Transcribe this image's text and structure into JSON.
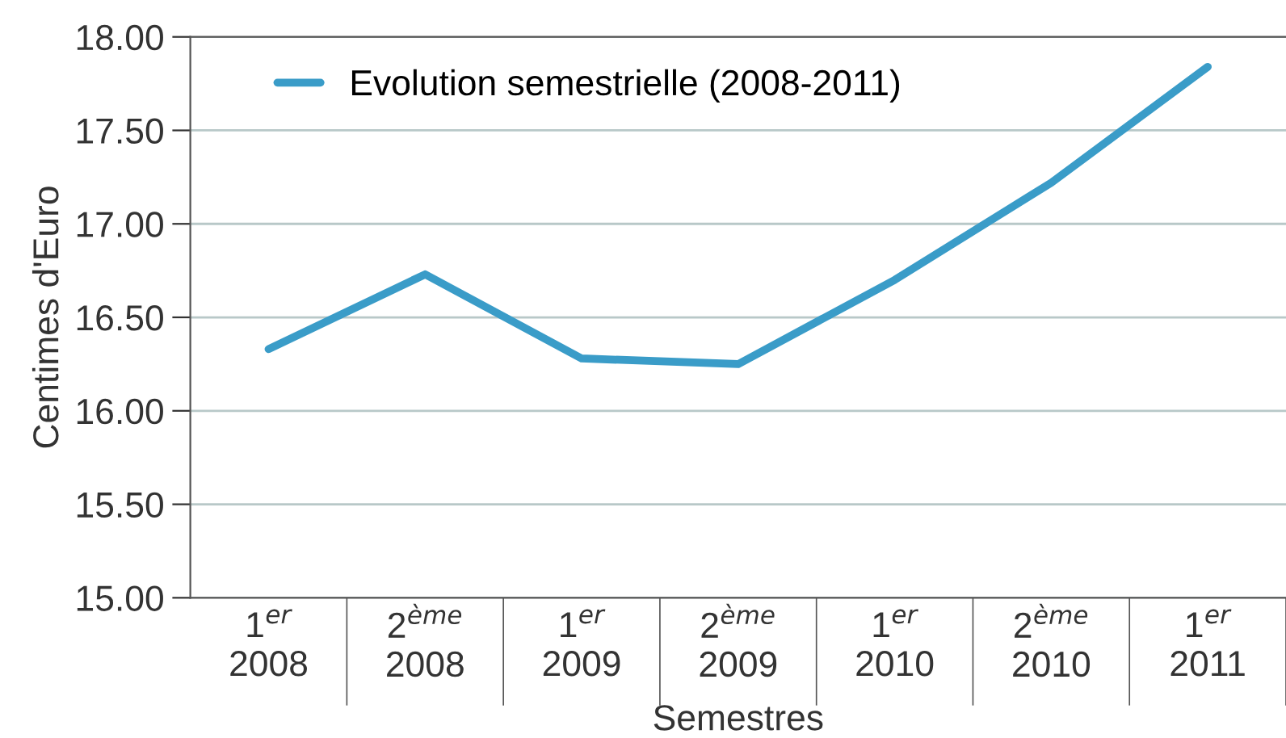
{
  "chart_data": {
    "type": "line",
    "xlabel": "Semestres",
    "ylabel": "Centimes d'Euro",
    "categories": [
      "1$^{er}$\n2008",
      "2$^{ème}$\n2008",
      "1$^{er}$\n2009",
      "2$^{ème}$\n2009",
      "1$^{er}$\n2010",
      "2$^{ème}$\n2010",
      "1$^{er}$\n2011"
    ],
    "series": [
      {
        "name": "Evolution semestrielle (2008-2011)",
        "color": "#3a9cc8",
        "values": [
          16.33,
          16.73,
          16.28,
          16.25,
          16.7,
          17.22,
          17.84
        ]
      }
    ],
    "ylim": [
      15.0,
      18.0
    ],
    "yticks": [
      {
        "value": 15.0,
        "label": "15.00"
      },
      {
        "value": 15.5,
        "label": "15.50"
      },
      {
        "value": 16.0,
        "label": "16.00"
      },
      {
        "value": 16.5,
        "label": "16.50"
      },
      {
        "value": 17.0,
        "label": "17.00"
      },
      {
        "value": 17.5,
        "label": "17.50"
      },
      {
        "value": 18.0,
        "label": "18.00"
      }
    ],
    "grid": "y",
    "legend": "top left",
    "marker": "none",
    "line_style": "solid"
  }
}
